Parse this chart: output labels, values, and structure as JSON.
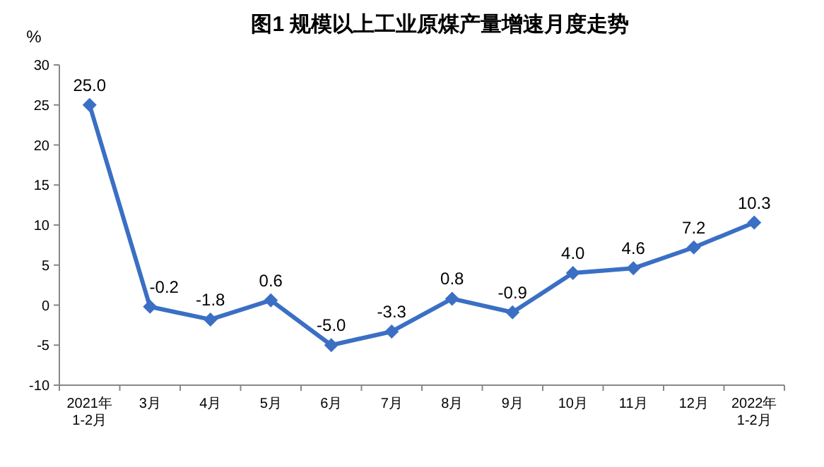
{
  "chart_data": {
    "type": "line",
    "title": "图1  规模以上工业原煤产量增速月度走势",
    "ylabel": "%",
    "categories": [
      "2021年\n1-2月",
      "3月",
      "4月",
      "5月",
      "6月",
      "7月",
      "8月",
      "9月",
      "10月",
      "11月",
      "12月",
      "2022年\n1-2月"
    ],
    "series": [
      {
        "color": "#3a6fc4",
        "values": [
          25.0,
          -0.2,
          -1.8,
          0.6,
          -5.0,
          -3.3,
          0.8,
          -0.9,
          4.0,
          4.6,
          7.2,
          10.3
        ],
        "value_labels": [
          "25.0",
          "-0.2",
          "-1.8",
          "0.6",
          "-5.0",
          "-3.3",
          "0.8",
          "-0.9",
          "4.0",
          "4.6",
          "7.2",
          "10.3"
        ]
      }
    ],
    "ylim": [
      -10,
      30
    ],
    "yticks": [
      -10,
      -5,
      0,
      5,
      10,
      15,
      20,
      25,
      30
    ],
    "grid": false,
    "marker": "diamond",
    "line_style": "solid"
  }
}
